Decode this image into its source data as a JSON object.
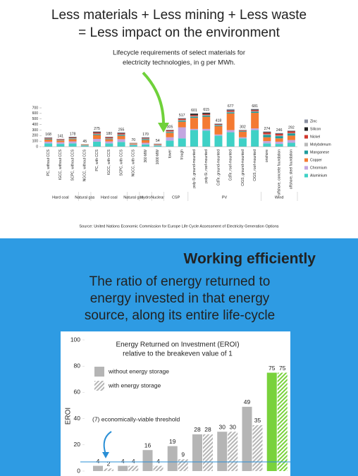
{
  "header": {
    "lines": [
      "Less materials + Less mining + Less waste",
      "= Less impact on the environment"
    ]
  },
  "annotation": [
    "Lifecycle requirements of select materials for",
    "electricity technologies, in g per MWh."
  ],
  "source": "Source: United Nations Economic Commission for Europe Life Cycle Assessment of Electricity Generation Options",
  "section": {
    "title": "Working efficiently",
    "subtitle": [
      "The ratio of energy returned to",
      "energy invested in that energy",
      "source, along its entire life-cycle"
    ]
  },
  "chart_data": [
    {
      "type": "stacked_bar",
      "ylim": [
        0,
        700
      ],
      "yticks": [
        0,
        100,
        200,
        300,
        400,
        500,
        600,
        700
      ],
      "legend": "right",
      "groups": [
        {
          "name": "Hard coal",
          "categories": [
            "PC, without CCS",
            "IGCC, without CCS",
            "SCPC, without CCS"
          ]
        },
        {
          "name": "Natural gas",
          "categories": [
            "NGCC, without CCS"
          ]
        },
        {
          "name": "Hard coal",
          "categories": [
            "PC, with CCS",
            "IGCC, with CCS",
            "SCPC, with CCS"
          ]
        },
        {
          "name": "Natural gas",
          "categories": [
            "NGCC, with CCS"
          ]
        },
        {
          "name": "Hydro",
          "categories": [
            "360 MW"
          ]
        },
        {
          "name": "Nuclear",
          "categories": [
            "1000 MW"
          ]
        },
        {
          "name": "CSP",
          "categories": [
            "tower",
            "trough"
          ]
        },
        {
          "name": "PV",
          "categories": [
            "poly-Si, ground-mounted",
            "poly-Si, roof-mounted",
            "CdTe, ground-mounted",
            "CdTe, roof-mounted",
            "CIGS, ground-mounted",
            "CIGS, roof-mounted"
          ]
        },
        {
          "name": "Wind",
          "categories": [
            "onshore",
            "offshore, concrete foundation",
            "offshore, steel foundation"
          ]
        }
      ],
      "series": [
        {
          "name": "Aluminium",
          "color": "#3fd1c6",
          "values": [
            60,
            50,
            60,
            20,
            90,
            60,
            85,
            30,
            40,
            20,
            110,
            150,
            300,
            290,
            200,
            260,
            150,
            300,
            60,
            50,
            70
          ]
        },
        {
          "name": "Chromium",
          "color": "#c3a6e0",
          "values": [
            30,
            30,
            35,
            5,
            50,
            35,
            50,
            10,
            30,
            10,
            60,
            200,
            20,
            30,
            20,
            40,
            20,
            30,
            40,
            40,
            50
          ]
        },
        {
          "name": "Copper",
          "color": "#f47a32",
          "values": [
            40,
            30,
            40,
            10,
            70,
            40,
            60,
            15,
            50,
            10,
            80,
            100,
            200,
            220,
            150,
            300,
            100,
            280,
            70,
            60,
            80
          ]
        },
        {
          "name": "Manganese",
          "color": "#1f9c9c",
          "values": [
            10,
            8,
            10,
            3,
            15,
            10,
            15,
            5,
            15,
            4,
            15,
            20,
            20,
            20,
            15,
            20,
            10,
            20,
            40,
            40,
            40
          ]
        },
        {
          "name": "Molybdenum",
          "color": "#b9b9b9",
          "values": [
            5,
            5,
            8,
            2,
            10,
            8,
            10,
            2,
            10,
            2,
            10,
            10,
            10,
            10,
            8,
            10,
            4,
            10,
            14,
            10,
            6
          ]
        },
        {
          "name": "Nickel",
          "color": "#d1382e",
          "values": [
            10,
            10,
            10,
            2,
            20,
            15,
            20,
            5,
            10,
            5,
            20,
            20,
            20,
            20,
            10,
            20,
            10,
            20,
            30,
            30,
            30
          ]
        },
        {
          "name": "Silicon",
          "color": "#222222",
          "values": [
            5,
            4,
            8,
            1,
            10,
            6,
            8,
            1,
            8,
            1,
            5,
            7,
            25,
            20,
            5,
            7,
            4,
            8,
            10,
            6,
            6
          ]
        },
        {
          "name": "Zinc",
          "color": "#8a8fa0",
          "values": [
            8,
            4,
            7,
            2,
            10,
            6,
            7,
            2,
            7,
            2,
            5,
            10,
            6,
            5,
            10,
            20,
            4,
            13,
            10,
            10,
            10
          ]
        }
      ],
      "totals": [
        168,
        141,
        178,
        45,
        275,
        180,
        255,
        70,
        170,
        54,
        305,
        517,
        601,
        615,
        418,
        677,
        302,
        681,
        274,
        246,
        292
      ]
    },
    {
      "type": "bar",
      "title": [
        "Energy Returned on Investment (EROI)",
        "relative to the breakeven value of 1"
      ],
      "ylabel": "EROI",
      "ylim": [
        0,
        100
      ],
      "yticks": [
        0,
        20,
        40,
        60,
        80,
        100
      ],
      "categories": [
        null,
        null,
        null,
        null,
        null,
        null,
        null,
        null
      ],
      "threshold": {
        "value": 7,
        "label": "(7) economically-viable threshold",
        "color": "#2a8fd6"
      },
      "series": [
        {
          "name": "without energy storage",
          "pattern": "solid",
          "colors": [
            "#b5b5b5",
            "#b5b5b5",
            "#b5b5b5",
            "#b5b5b5",
            "#b5b5b5",
            "#b5b5b5",
            "#b5b5b5",
            "#79d23c"
          ],
          "values": [
            4,
            4,
            16,
            19,
            28,
            30,
            49,
            75
          ]
        },
        {
          "name": "with energy storage",
          "pattern": "hatch",
          "colors": [
            "#b5b5b5",
            "#b5b5b5",
            "#b5b5b5",
            "#b5b5b5",
            "#b5b5b5",
            "#b5b5b5",
            "#b5b5b5",
            "#79d23c"
          ],
          "values": [
            2,
            4,
            4,
            9,
            28,
            30,
            35,
            75
          ]
        }
      ]
    }
  ]
}
